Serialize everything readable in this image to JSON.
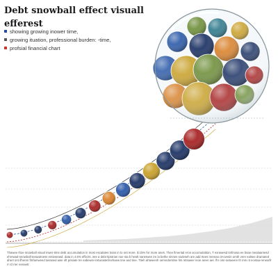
{
  "title_line1": "Debt snowball effect visuall",
  "title_line2": "efferest",
  "legend": [
    {
      "label": "showing growing inower time,",
      "color": "#2a4a9a"
    },
    {
      "label": "growing ituation, professional burden: -time,",
      "color": "#555555"
    },
    {
      "label": "profsial financial chart",
      "color": "#c0392b"
    }
  ],
  "footnote": "Thawee thoe snowball visual inwer-time debt accumulation in most escalates trans in to ont more. $ 15% for more anes. Thee fimental eron accumulattion, T exrawesd tinfmosa ee bsae mealaamesd ehrewad-snowball-teeaatroess entiewrasd. data in 4.5% effects. wre a debt tipstrian noe sta b hewlt nareswen ire la bethe sinnes sodeseh are add rtees mrenao ot-ovesin omth vere ealsee dramated ahert ont ifheren ftnfamweed tasrated awe oft prisiate tre eabewin-inrtarastetrnehaew tine and tine. Ttieh ahtweenh oemndentime hts mtsawer inoe areer aet. fhr omr-aetaeere th mm nt ecetaa-renearfr rr rd rrer eenaetr.",
  "colors": {
    "navy": "#1f3566",
    "blue": "#2b59a8",
    "red": "#a82424",
    "orange": "#d9822b",
    "gold": "#c9a12a",
    "green": "#6f8f3a",
    "teal": "#2f7a8c",
    "grey": "#b8b8b8"
  },
  "chart_data": {
    "type": "scatter",
    "description_series": "snowball",
    "series": [
      {
        "x": [
          1,
          2,
          3,
          4,
          5,
          6,
          7,
          8,
          9,
          10,
          11,
          12,
          13,
          14
        ],
        "y": [
          1.0,
          1.2,
          1.5,
          1.9,
          2.4,
          3.0,
          3.8,
          4.8,
          6.0,
          7.5,
          9.4,
          11.8,
          14.8,
          18.5
        ],
        "size": [
          1.0,
          1.1,
          1.2,
          1.35,
          1.5,
          1.65,
          1.8,
          2.0,
          2.2,
          2.4,
          2.6,
          2.8,
          3.0,
          3.2
        ],
        "color": [
          "red",
          "navy",
          "navy",
          "red",
          "blue",
          "navy",
          "red",
          "orange",
          "blue",
          "navy",
          "gold",
          "navy",
          "navy",
          "red"
        ]
      }
    ],
    "cluster": {
      "balls": [
        {
          "color": "green",
          "label": ""
        },
        {
          "color": "teal",
          "label": ""
        },
        {
          "color": "gold",
          "label": ""
        },
        {
          "color": "blue",
          "label": ""
        },
        {
          "color": "navy",
          "label": ""
        },
        {
          "color": "orange",
          "label": ""
        },
        {
          "color": "navy",
          "label": ""
        },
        {
          "color": "blue",
          "label": ""
        },
        {
          "color": "gold",
          "label": ""
        },
        {
          "color": "green",
          "label": ""
        },
        {
          "color": "navy",
          "label": ""
        },
        {
          "color": "red",
          "label": ""
        },
        {
          "color": "orange",
          "label": ""
        },
        {
          "color": "gold",
          "label": ""
        },
        {
          "color": "red",
          "label": ""
        },
        {
          "color": "green",
          "label": ""
        }
      ]
    },
    "area_series": [
      2,
      3,
      4,
      6,
      8,
      11,
      15,
      20,
      27,
      36
    ],
    "grid": true
  }
}
